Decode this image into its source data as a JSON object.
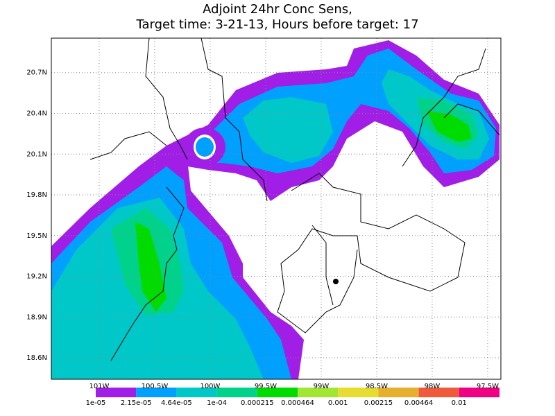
{
  "chart_data": {
    "type": "contour",
    "title": [
      "Adjoint 24hr Conc Sens,",
      "Target time: 3-21-13, Hours before target: 17"
    ],
    "xlim": [
      -101.431,
      -97.381
    ],
    "ylim": [
      18.442,
      20.954
    ],
    "xticks": [
      {
        "value": -101,
        "label": "101W"
      },
      {
        "value": -100.5,
        "label": "100.5W"
      },
      {
        "value": -100,
        "label": "100W"
      },
      {
        "value": -99.5,
        "label": "99.5W"
      },
      {
        "value": -99,
        "label": "99W"
      },
      {
        "value": -98.5,
        "label": "98.5W"
      },
      {
        "value": -98,
        "label": "98W"
      },
      {
        "value": -97.5,
        "label": "97.5W"
      }
    ],
    "yticks": [
      {
        "value": 18.6,
        "label": "18.6N"
      },
      {
        "value": 18.9,
        "label": "18.9N"
      },
      {
        "value": 19.2,
        "label": "19.2N"
      },
      {
        "value": 19.5,
        "label": "19.5N"
      },
      {
        "value": 19.8,
        "label": "19.8N"
      },
      {
        "value": 20.1,
        "label": "20.1N"
      },
      {
        "value": 20.4,
        "label": "20.4N"
      },
      {
        "value": 20.7,
        "label": "20.7N"
      }
    ],
    "grid": true,
    "levels": [
      {
        "value": 1e-05,
        "label": "1e-05"
      },
      {
        "value": 2.15e-05,
        "label": "2.15e-05"
      },
      {
        "value": 4.64e-05,
        "label": "4.64e-05"
      },
      {
        "value": 0.0001,
        "label": "1e-04"
      },
      {
        "value": 0.000215,
        "label": "0.000215"
      },
      {
        "value": 0.000464,
        "label": "0.000464"
      },
      {
        "value": 0.001,
        "label": "0.001"
      },
      {
        "value": 0.00215,
        "label": "0.00215"
      },
      {
        "value": 0.00464,
        "label": "0.00464"
      },
      {
        "value": 0.01,
        "label": "0.01"
      }
    ],
    "colors": [
      "#a01ee6",
      "#00a0ff",
      "#00c8c8",
      "#00d28c",
      "#00dc00",
      "#a0e632",
      "#e6dc32",
      "#e6af2d",
      "#f05a3c",
      "#f00082"
    ]
  }
}
